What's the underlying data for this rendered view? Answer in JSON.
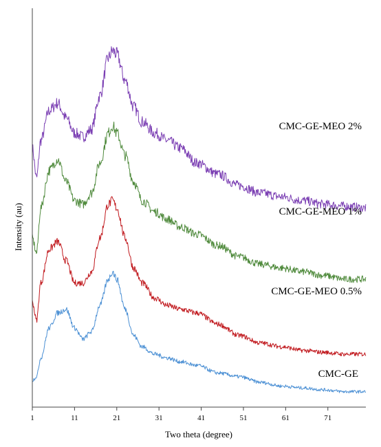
{
  "chart_data": {
    "type": "line",
    "xlabel": "Two theta (degree)",
    "ylabel": "Intensity (au)",
    "xlim": [
      1,
      80
    ],
    "x_ticks": [
      1,
      11,
      21,
      31,
      41,
      51,
      61,
      71
    ],
    "y_ticks_shown": false,
    "grid": false,
    "legend": "none (series labeled directly on the right)",
    "series": [
      {
        "name": "CMC-GE-MEO 2%",
        "color": "#7b3fb3",
        "x": [
          1,
          2,
          3,
          5,
          7,
          9,
          11,
          13,
          15,
          17,
          19,
          20,
          21,
          23,
          25,
          27,
          30,
          33,
          36,
          40,
          45,
          50,
          55,
          60,
          65,
          70,
          75,
          80
        ],
        "y": [
          0.66,
          0.58,
          0.68,
          0.76,
          0.78,
          0.74,
          0.7,
          0.69,
          0.71,
          0.8,
          0.9,
          0.92,
          0.91,
          0.84,
          0.77,
          0.73,
          0.7,
          0.68,
          0.66,
          0.62,
          0.59,
          0.56,
          0.54,
          0.53,
          0.52,
          0.51,
          0.505,
          0.5
        ]
      },
      {
        "name": "CMC-GE-MEO 1%",
        "color": "#4f8a3c",
        "x": [
          1,
          2,
          3,
          5,
          7,
          9,
          11,
          13,
          15,
          17,
          19,
          20,
          21,
          23,
          25,
          27,
          30,
          33,
          36,
          40,
          45,
          50,
          55,
          60,
          65,
          70,
          75,
          80
        ],
        "y": [
          0.42,
          0.38,
          0.5,
          0.6,
          0.63,
          0.57,
          0.52,
          0.51,
          0.54,
          0.62,
          0.7,
          0.72,
          0.7,
          0.64,
          0.57,
          0.52,
          0.49,
          0.47,
          0.45,
          0.43,
          0.4,
          0.37,
          0.35,
          0.34,
          0.33,
          0.32,
          0.31,
          0.31
        ]
      },
      {
        "name": "CMC-GE-MEO 0.5%",
        "color": "#c0171c",
        "x": [
          1,
          2,
          3,
          5,
          7,
          9,
          11,
          13,
          15,
          17,
          19,
          20,
          21,
          23,
          25,
          27,
          30,
          33,
          36,
          40,
          45,
          50,
          55,
          60,
          65,
          70,
          75,
          80
        ],
        "y": [
          0.25,
          0.2,
          0.3,
          0.39,
          0.41,
          0.36,
          0.3,
          0.3,
          0.33,
          0.42,
          0.51,
          0.52,
          0.5,
          0.42,
          0.34,
          0.3,
          0.26,
          0.24,
          0.23,
          0.22,
          0.19,
          0.16,
          0.14,
          0.13,
          0.12,
          0.115,
          0.11,
          0.11
        ]
      },
      {
        "name": "CMC-GE",
        "color": "#4a8fd4",
        "x": [
          1,
          2,
          3,
          5,
          7,
          9,
          11,
          13,
          15,
          17,
          19,
          20,
          21,
          23,
          25,
          27,
          30,
          33,
          36,
          40,
          45,
          50,
          55,
          60,
          65,
          70,
          75,
          80
        ],
        "y": [
          0.04,
          0.05,
          0.1,
          0.18,
          0.22,
          0.23,
          0.18,
          0.15,
          0.17,
          0.24,
          0.31,
          0.33,
          0.31,
          0.23,
          0.16,
          0.13,
          0.11,
          0.1,
          0.09,
          0.08,
          0.06,
          0.05,
          0.035,
          0.025,
          0.02,
          0.015,
          0.01,
          0.01
        ]
      }
    ]
  }
}
